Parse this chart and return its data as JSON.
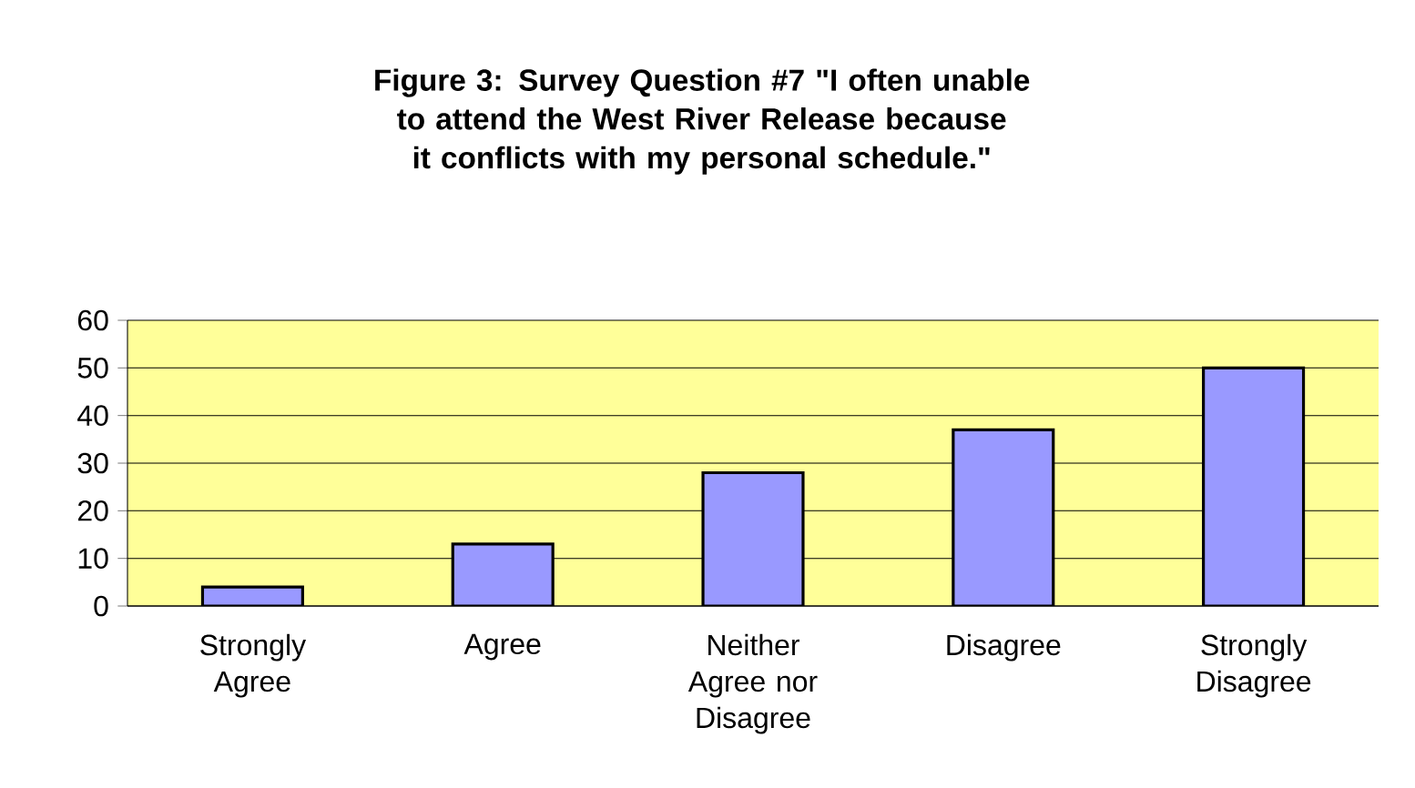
{
  "chart_data": {
    "type": "bar",
    "title": "Figure 3: Survey Question #7 \"I often unable to attend the West River Release because it conflicts with my personal schedule.\"",
    "categories": [
      "Strongly Agree",
      "Agree",
      "Neither Agree nor Disagree",
      "Disagree",
      "Strongly Disagree"
    ],
    "values": [
      4,
      13,
      28,
      37,
      50
    ],
    "color": "#9999ff",
    "ylim": [
      0,
      60
    ],
    "yticks": [
      0,
      10,
      20,
      30,
      40,
      50,
      60
    ],
    "grid": "y"
  }
}
